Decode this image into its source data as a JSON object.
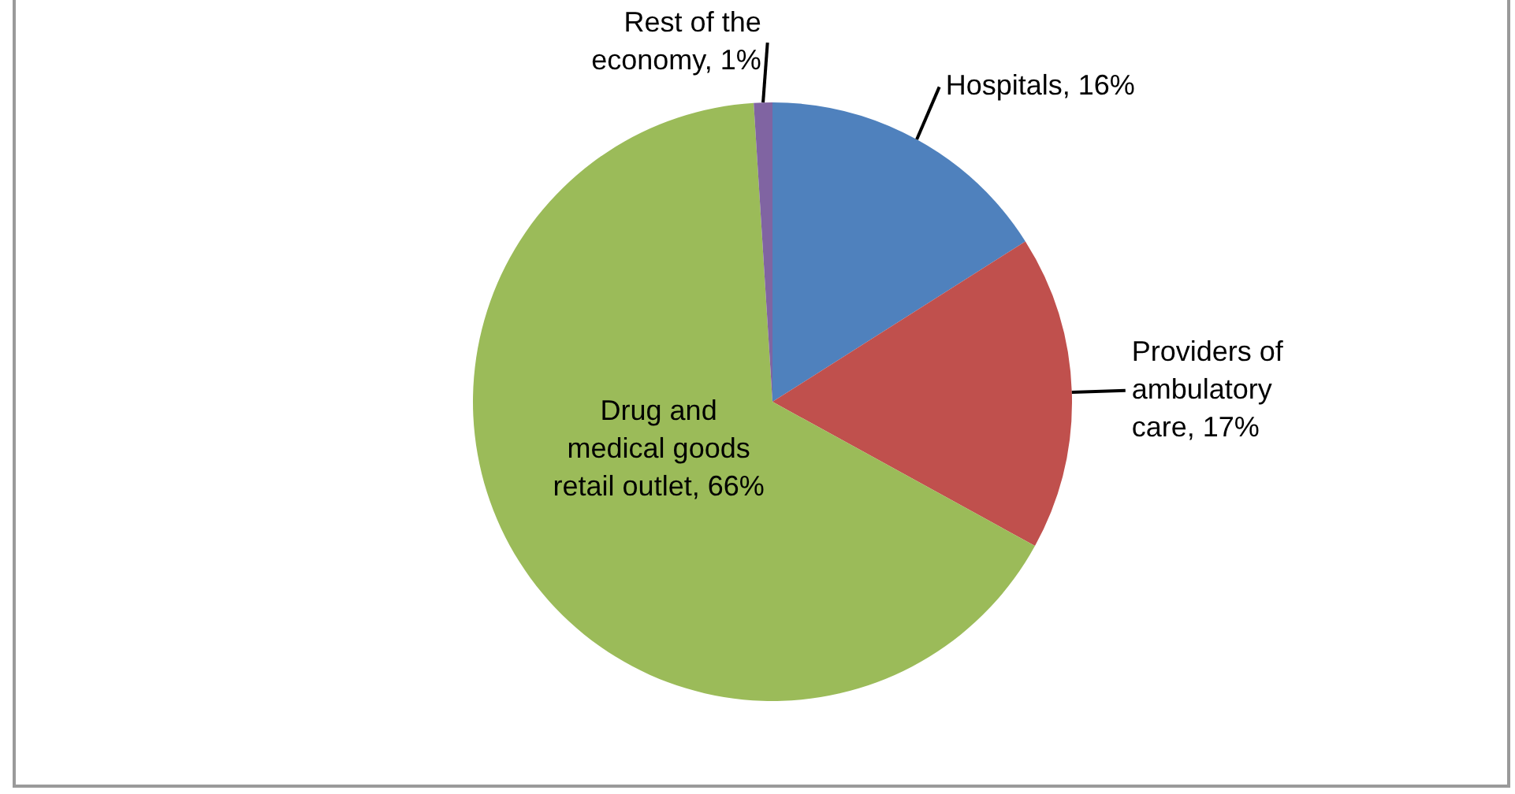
{
  "chart_data": {
    "type": "pie",
    "categories": [
      "Hospitals",
      "Providers of ambulatory care",
      "Drug and medical goods retail outlet",
      "Rest of the economy"
    ],
    "values": [
      16,
      17,
      66,
      1
    ],
    "colors": [
      "#4f81bd",
      "#c0504d",
      "#9bbb59",
      "#8064a2"
    ],
    "value_labels": [
      "16%",
      "17%",
      "66%",
      "1%"
    ],
    "legend": false
  }
}
